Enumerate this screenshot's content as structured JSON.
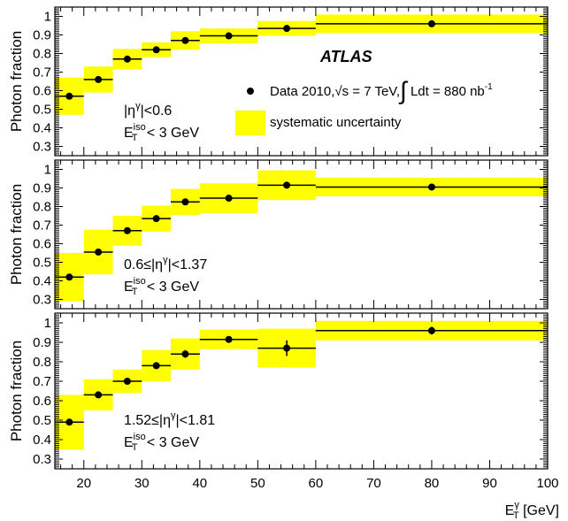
{
  "figure": {
    "xlabel_main": "E",
    "xlabel_sup": "γ",
    "xlabel_sub": "T",
    "xlabel_unit": "[GeV]",
    "ylabel": "Photon fraction",
    "atlas_label": "ATLAS",
    "legend": {
      "data_prefix": "Data 2010,",
      "data_sqrt": "√s",
      "data_energy": " = 7 TeV,",
      "data_integral": "∫",
      "data_lumi": "Ldt = 880 nb",
      "data_lumi_exp": "-1",
      "syst_label": "systematic uncertainty"
    },
    "colors": {
      "band": "#ffff00",
      "marker": "#000000"
    }
  },
  "chart_data": [
    {
      "type": "scatter",
      "region_label": "|η|<0.6",
      "region_label_sup": "γ",
      "region_label_parts": [
        "|η",
        "|<0.6"
      ],
      "cut_label_main": "E",
      "cut_label_sup": "iso",
      "cut_label_sub": "T",
      "cut_label_rest": " < 3 GeV",
      "xlim": [
        15,
        100
      ],
      "ylim": [
        0.25,
        1.05
      ],
      "yticks": [
        "0.3",
        "0.4",
        "0.5",
        "0.6",
        "0.7",
        "0.8",
        "0.9",
        "1"
      ],
      "bins": [
        [
          15,
          20
        ],
        [
          20,
          25
        ],
        [
          25,
          30
        ],
        [
          30,
          35
        ],
        [
          35,
          40
        ],
        [
          40,
          50
        ],
        [
          50,
          60
        ],
        [
          60,
          100
        ]
      ],
      "x": [
        17.5,
        22.5,
        27.5,
        32.5,
        37.5,
        45,
        55,
        80
      ],
      "y": [
        0.57,
        0.66,
        0.77,
        0.82,
        0.87,
        0.895,
        0.935,
        0.96
      ],
      "syst": [
        0.1,
        0.07,
        0.055,
        0.04,
        0.05,
        0.04,
        0.04,
        0.05
      ],
      "stat": [
        0.01,
        0.01,
        0.01,
        0.01,
        0.01,
        0.01,
        0.01,
        0.01
      ]
    },
    {
      "type": "scatter",
      "region_label_parts": [
        "0.6≤|η",
        "|<1.37"
      ],
      "region_label_sup": "γ",
      "cut_label_main": "E",
      "cut_label_sup": "iso",
      "cut_label_sub": "T",
      "cut_label_rest": " < 3 GeV",
      "xlim": [
        15,
        100
      ],
      "ylim": [
        0.25,
        1.05
      ],
      "yticks": [
        "0.3",
        "0.4",
        "0.5",
        "0.6",
        "0.7",
        "0.8",
        "0.9",
        "1"
      ],
      "bins": [
        [
          15,
          20
        ],
        [
          20,
          25
        ],
        [
          25,
          30
        ],
        [
          30,
          35
        ],
        [
          35,
          40
        ],
        [
          40,
          50
        ],
        [
          50,
          60
        ],
        [
          60,
          100
        ]
      ],
      "x": [
        17.5,
        22.5,
        27.5,
        32.5,
        37.5,
        45,
        55,
        80
      ],
      "y": [
        0.42,
        0.555,
        0.67,
        0.735,
        0.825,
        0.845,
        0.915,
        0.905
      ],
      "syst": [
        0.13,
        0.12,
        0.08,
        0.07,
        0.07,
        0.08,
        0.08,
        0.05
      ],
      "stat": [
        0.015,
        0.01,
        0.01,
        0.01,
        0.01,
        0.01,
        0.01,
        0.01
      ]
    },
    {
      "type": "scatter",
      "region_label_parts": [
        "1.52≤|η",
        "|<1.81"
      ],
      "region_label_sup": "γ",
      "cut_label_main": "E",
      "cut_label_sup": "iso",
      "cut_label_sub": "T",
      "cut_label_rest": " < 3 GeV",
      "xlim": [
        15,
        100
      ],
      "ylim": [
        0.25,
        1.05
      ],
      "xticks": [
        "20",
        "30",
        "40",
        "50",
        "60",
        "70",
        "80",
        "90",
        "100"
      ],
      "yticks": [
        "0.3",
        "0.4",
        "0.5",
        "0.6",
        "0.7",
        "0.8",
        "0.9",
        "1"
      ],
      "bins": [
        [
          15,
          20
        ],
        [
          20,
          25
        ],
        [
          25,
          30
        ],
        [
          30,
          35
        ],
        [
          35,
          40
        ],
        [
          40,
          50
        ],
        [
          50,
          60
        ],
        [
          60,
          100
        ]
      ],
      "x": [
        17.5,
        22.5,
        27.5,
        32.5,
        37.5,
        45,
        55,
        80
      ],
      "y": [
        0.49,
        0.63,
        0.7,
        0.78,
        0.84,
        0.915,
        0.87,
        0.96
      ],
      "syst": [
        0.14,
        0.08,
        0.06,
        0.08,
        0.08,
        0.05,
        0.1,
        0.05
      ],
      "stat": [
        0.015,
        0.01,
        0.01,
        0.015,
        0.02,
        0.01,
        0.04,
        0.02
      ]
    }
  ]
}
